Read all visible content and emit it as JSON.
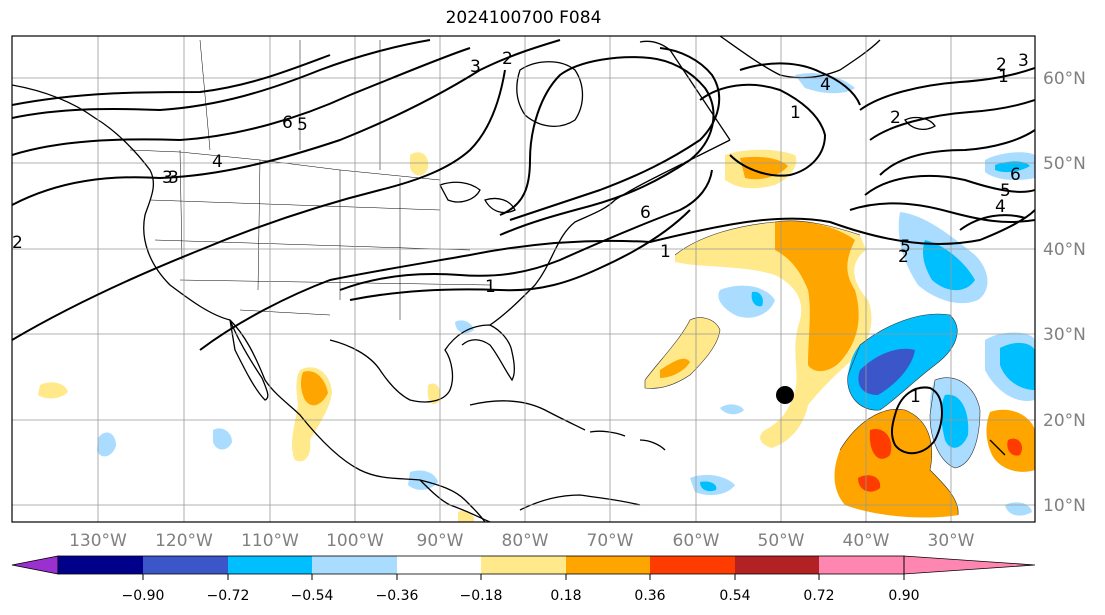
{
  "title": "2024100700 F084",
  "lon_labels": [
    "130°W",
    "120°W",
    "110°W",
    "100°W",
    "90°W",
    "80°W",
    "70°W",
    "60°W",
    "50°W",
    "40°W",
    "30°W"
  ],
  "lat_labels": [
    "60°N",
    "50°N",
    "40°N",
    "30°N",
    "20°N",
    "10°N"
  ],
  "colorbar": {
    "tick_labels": [
      "−0.90",
      "−0.72",
      "−0.54",
      "−0.36",
      "−0.18",
      "0.18",
      "0.36",
      "0.54",
      "0.72",
      "0.90"
    ],
    "colors": [
      "#9b30d0",
      "#00008b",
      "#3a56c9",
      "#00bfff",
      "#a9dcff",
      "#ffffff",
      "#ffe98a",
      "#ffa500",
      "#ff3c00",
      "#b22222",
      "#ff86b0"
    ]
  },
  "contour_labels": [
    "6",
    "5",
    "4",
    "3",
    "2",
    "3",
    "2",
    "1",
    "2",
    "1",
    "1",
    "2",
    "3",
    "4",
    "5",
    "6",
    "2",
    "6",
    "1",
    "3",
    "4",
    "5",
    "1"
  ]
}
